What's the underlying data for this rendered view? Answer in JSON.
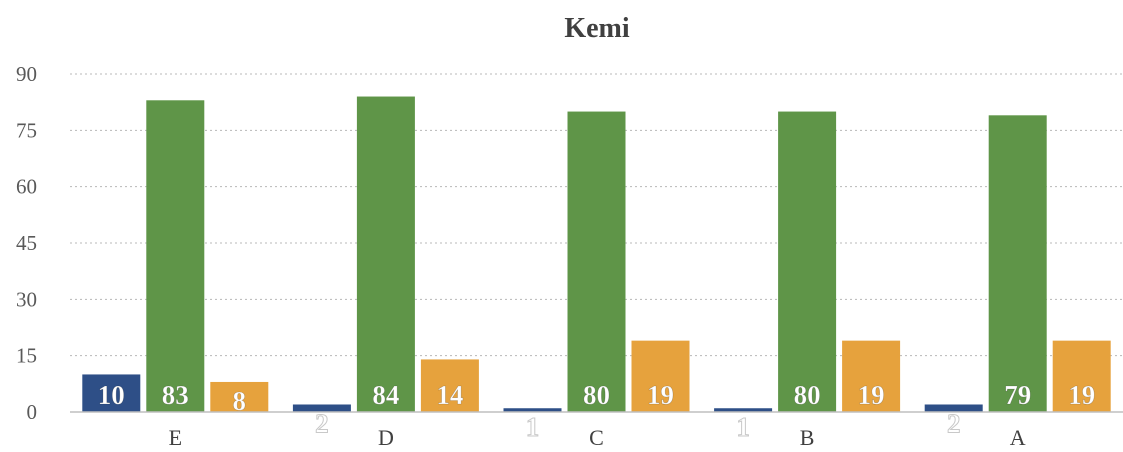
{
  "chart_data": {
    "type": "bar",
    "title": "Kemi",
    "categories": [
      "E",
      "D",
      "C",
      "B",
      "A"
    ],
    "series": [
      {
        "color": "#2e4f87",
        "values": [
          10,
          2,
          1,
          1,
          2
        ]
      },
      {
        "color": "#5f9548",
        "values": [
          83,
          84,
          80,
          80,
          79
        ]
      },
      {
        "color": "#e6a23d",
        "values": [
          8,
          14,
          19,
          19,
          19
        ]
      }
    ],
    "yticks": [
      0,
      15,
      30,
      45,
      60,
      75,
      90
    ],
    "ylim": [
      0,
      90
    ],
    "grid": true,
    "xlabel": "",
    "ylabel": ""
  }
}
